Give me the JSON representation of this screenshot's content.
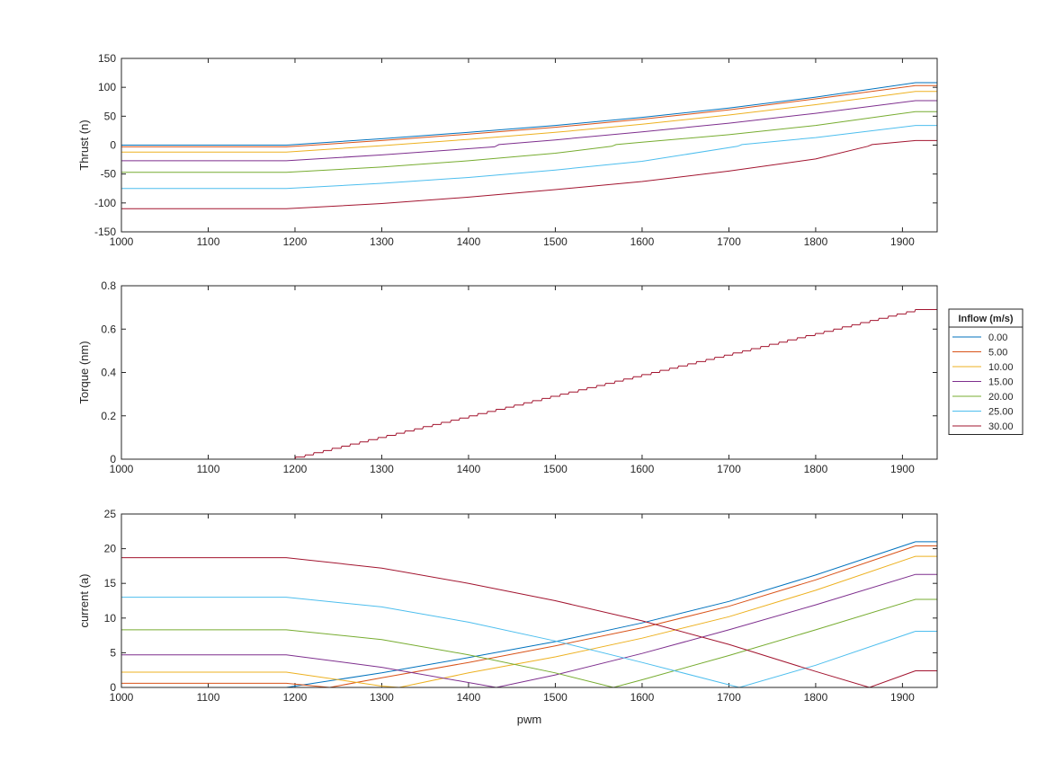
{
  "chart_data": [
    {
      "type": "line",
      "ylabel": "Thrust (n)",
      "xlabel": "",
      "xlim": [
        1000,
        1940
      ],
      "ylim": [
        -150,
        150
      ],
      "xticks": [
        "1000",
        "1100",
        "1200",
        "1300",
        "1400",
        "1500",
        "1600",
        "1700",
        "1800",
        "1900"
      ],
      "yticks": [
        "-150",
        "-100",
        "-50",
        "0",
        "50",
        "100",
        "150"
      ],
      "series": [
        {
          "name": "0.00",
          "color": "#0072BD",
          "x": [
            1000,
            1190,
            1300,
            1400,
            1500,
            1600,
            1700,
            1800,
            1915,
            1940
          ],
          "y": [
            0,
            0,
            11,
            22,
            34,
            48,
            64,
            83,
            108,
            108
          ]
        },
        {
          "name": "5.00",
          "color": "#D95319",
          "x": [
            1000,
            1190,
            1300,
            1400,
            1500,
            1600,
            1700,
            1800,
            1915,
            1940
          ],
          "y": [
            -3,
            -3,
            8,
            19,
            31,
            45,
            61,
            80,
            103,
            103
          ]
        },
        {
          "name": "10.00",
          "color": "#EDB120",
          "x": [
            1000,
            1190,
            1300,
            1400,
            1500,
            1600,
            1700,
            1800,
            1915,
            1940
          ],
          "y": [
            -12,
            -12,
            -1,
            10,
            22,
            36,
            52,
            70,
            93,
            93
          ]
        },
        {
          "name": "15.00",
          "color": "#7E2F8E",
          "x": [
            1000,
            1190,
            1300,
            1430,
            1435,
            1500,
            1600,
            1700,
            1800,
            1915,
            1940
          ],
          "y": [
            -27,
            -27,
            -17,
            -3,
            1,
            9,
            23,
            38,
            55,
            77,
            77
          ]
        },
        {
          "name": "20.00",
          "color": "#77AC30",
          "x": [
            1000,
            1190,
            1300,
            1400,
            1500,
            1565,
            1570,
            1600,
            1700,
            1800,
            1915,
            1940
          ],
          "y": [
            -47,
            -47,
            -38,
            -27,
            -14,
            -2,
            1,
            5,
            18,
            34,
            58,
            58
          ]
        },
        {
          "name": "25.00",
          "color": "#4DBEEE",
          "x": [
            1000,
            1190,
            1300,
            1400,
            1500,
            1600,
            1710,
            1715,
            1800,
            1915,
            1940
          ],
          "y": [
            -75,
            -75,
            -66,
            -56,
            -43,
            -28,
            -2,
            1,
            13,
            34,
            34
          ]
        },
        {
          "name": "30.00",
          "color": "#A2142F",
          "x": [
            1000,
            1190,
            1300,
            1400,
            1500,
            1600,
            1700,
            1800,
            1860,
            1865,
            1915,
            1940
          ],
          "y": [
            -110,
            -110,
            -101,
            -90,
            -77,
            -63,
            -45,
            -24,
            -2,
            1,
            8,
            8
          ]
        }
      ]
    },
    {
      "type": "line",
      "ylabel": "Torque (nm)",
      "xlabel": "",
      "xlim": [
        1000,
        1940
      ],
      "ylim": [
        0,
        0.8
      ],
      "xticks": [
        "1000",
        "1100",
        "1200",
        "1300",
        "1400",
        "1500",
        "1600",
        "1700",
        "1800",
        "1900"
      ],
      "yticks": [
        "0",
        "0.2",
        "0.4",
        "0.6",
        "0.8"
      ],
      "step": 10,
      "series": [
        {
          "name": "30.00",
          "color": "#A2142F",
          "x": [
            1000,
            1190,
            1915,
            1940
          ],
          "y": [
            0,
            0,
            0.69,
            0.69
          ]
        }
      ]
    },
    {
      "type": "line",
      "ylabel": "current (a)",
      "xlabel": "pwm",
      "xlim": [
        1000,
        1940
      ],
      "ylim": [
        0,
        25
      ],
      "xticks": [
        "1000",
        "1100",
        "1200",
        "1300",
        "1400",
        "1500",
        "1600",
        "1700",
        "1800",
        "1900"
      ],
      "yticks": [
        "0",
        "5",
        "10",
        "15",
        "20",
        "25"
      ],
      "series": [
        {
          "name": "0.00",
          "color": "#0072BD",
          "x": [
            1000,
            1190,
            1300,
            1400,
            1500,
            1600,
            1700,
            1800,
            1915,
            1940
          ],
          "y": [
            0,
            0,
            2.1,
            4.3,
            6.6,
            9.3,
            12.4,
            16.2,
            21,
            21
          ]
        },
        {
          "name": "5.00",
          "color": "#D95319",
          "x": [
            1000,
            1190,
            1240,
            1300,
            1400,
            1500,
            1600,
            1700,
            1800,
            1915,
            1940
          ],
          "y": [
            0.6,
            0.6,
            0,
            1.4,
            3.6,
            6,
            8.6,
            11.7,
            15.5,
            20.4,
            20.4
          ]
        },
        {
          "name": "10.00",
          "color": "#EDB120",
          "x": [
            1000,
            1190,
            1300,
            1320,
            1400,
            1500,
            1600,
            1700,
            1800,
            1915,
            1940
          ],
          "y": [
            2.2,
            2.2,
            0.2,
            0,
            2.1,
            4.4,
            7.1,
            10.2,
            14,
            18.9,
            18.9
          ]
        },
        {
          "name": "15.00",
          "color": "#7E2F8E",
          "x": [
            1000,
            1190,
            1300,
            1432,
            1500,
            1600,
            1700,
            1800,
            1915,
            1940
          ],
          "y": [
            4.7,
            4.7,
            2.9,
            0,
            1.8,
            4.9,
            8.3,
            11.9,
            16.3,
            16.3
          ]
        },
        {
          "name": "20.00",
          "color": "#77AC30",
          "x": [
            1000,
            1190,
            1300,
            1400,
            1500,
            1567,
            1600,
            1700,
            1800,
            1915,
            1940
          ],
          "y": [
            8.3,
            8.3,
            6.9,
            4.7,
            2.1,
            0,
            1.1,
            4.6,
            8.3,
            12.7,
            12.7
          ]
        },
        {
          "name": "25.00",
          "color": "#4DBEEE",
          "x": [
            1000,
            1190,
            1300,
            1400,
            1500,
            1600,
            1712,
            1800,
            1915,
            1940
          ],
          "y": [
            13,
            13,
            11.6,
            9.4,
            6.7,
            3.6,
            0,
            3.2,
            8.1,
            8.1
          ]
        },
        {
          "name": "30.00",
          "color": "#A2142F",
          "x": [
            1000,
            1190,
            1300,
            1400,
            1500,
            1600,
            1700,
            1800,
            1862,
            1915,
            1940
          ],
          "y": [
            18.7,
            18.7,
            17.2,
            15,
            12.5,
            9.6,
            6.2,
            2.3,
            0,
            2.4,
            2.4
          ]
        }
      ]
    }
  ],
  "legend": {
    "title": "Inflow (m/s)",
    "placement": "right",
    "entries": [
      {
        "label": "0.00",
        "color": "#0072BD"
      },
      {
        "label": "5.00",
        "color": "#D95319"
      },
      {
        "label": "10.00",
        "color": "#EDB120"
      },
      {
        "label": "15.00",
        "color": "#7E2F8E"
      },
      {
        "label": "20.00",
        "color": "#77AC30"
      },
      {
        "label": "25.00",
        "color": "#4DBEEE"
      },
      {
        "label": "30.00",
        "color": "#A2142F"
      }
    ]
  }
}
